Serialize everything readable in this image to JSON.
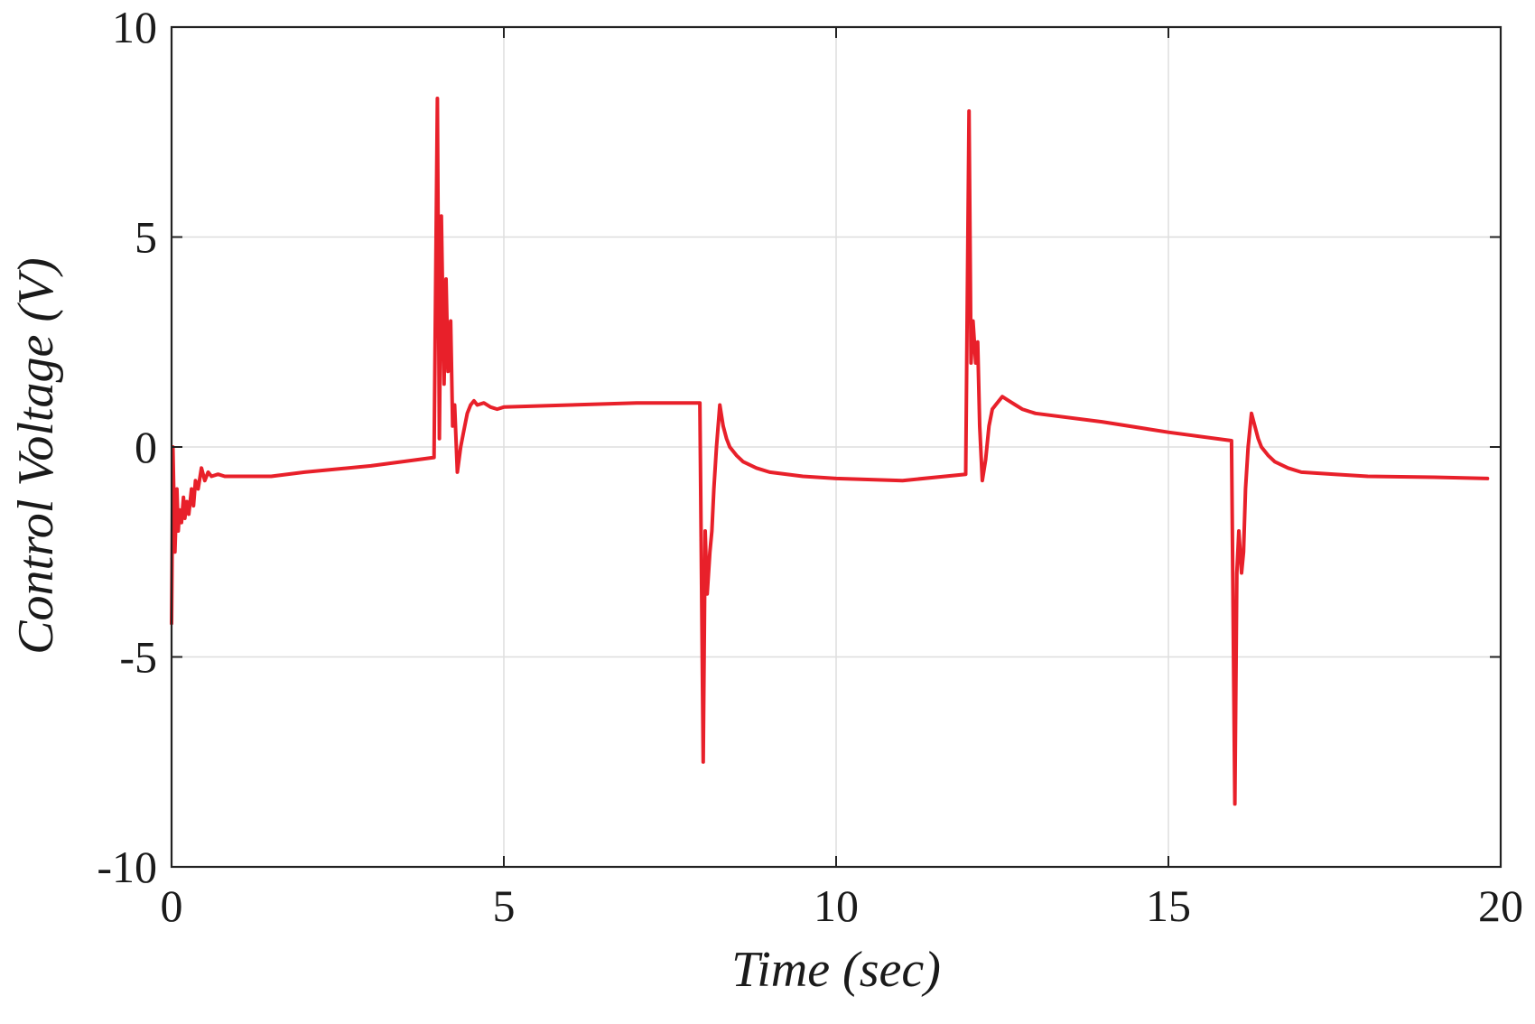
{
  "chart_data": {
    "type": "line",
    "title": "",
    "xlabel": "Time (sec)",
    "ylabel": "Control Voltage (V)",
    "xlim": [
      0,
      20
    ],
    "ylim": [
      -10,
      10
    ],
    "x_ticks": [
      0,
      5,
      10,
      15,
      20
    ],
    "x_tick_labels": [
      "0",
      "5",
      "10",
      "15",
      "20"
    ],
    "y_ticks": [
      -10,
      -5,
      0,
      5,
      10
    ],
    "y_tick_labels": [
      "-10",
      "-5",
      "0",
      "5",
      "10"
    ],
    "grid": true,
    "legend": "none",
    "colors": {
      "series": "#e8202a",
      "frame": "#222222",
      "grid": "#dedede"
    },
    "series": [
      {
        "color": "#e8202a",
        "x": [
          0.0,
          0.02,
          0.05,
          0.08,
          0.1,
          0.12,
          0.15,
          0.18,
          0.2,
          0.23,
          0.26,
          0.3,
          0.33,
          0.36,
          0.4,
          0.45,
          0.5,
          0.55,
          0.6,
          0.7,
          0.8,
          1.0,
          1.5,
          2.0,
          3.0,
          3.95,
          4.0,
          4.03,
          4.06,
          4.1,
          4.13,
          4.16,
          4.2,
          4.23,
          4.26,
          4.3,
          4.35,
          4.4,
          4.45,
          4.5,
          4.55,
          4.6,
          4.7,
          4.8,
          4.9,
          5.0,
          6.0,
          7.0,
          7.95,
          8.0,
          8.03,
          8.06,
          8.1,
          8.13,
          8.16,
          8.2,
          8.25,
          8.3,
          8.35,
          8.4,
          8.5,
          8.6,
          8.8,
          9.0,
          9.5,
          10.0,
          11.0,
          11.95,
          12.0,
          12.03,
          12.06,
          12.1,
          12.13,
          12.16,
          12.2,
          12.25,
          12.3,
          12.35,
          12.4,
          12.5,
          12.6,
          12.7,
          12.8,
          12.9,
          13.0,
          14.0,
          15.0,
          15.95,
          16.0,
          16.03,
          16.06,
          16.1,
          16.13,
          16.16,
          16.2,
          16.25,
          16.3,
          16.35,
          16.4,
          16.5,
          16.6,
          16.8,
          17.0,
          17.5,
          18.0,
          19.0,
          19.8
        ],
        "y": [
          -4.2,
          0.0,
          -2.5,
          -1.0,
          -2.0,
          -1.5,
          -1.8,
          -1.2,
          -1.7,
          -1.3,
          -1.6,
          -1.0,
          -1.4,
          -0.8,
          -1.0,
          -0.5,
          -0.8,
          -0.6,
          -0.7,
          -0.65,
          -0.7,
          -0.7,
          -0.7,
          -0.6,
          -0.45,
          -0.25,
          8.3,
          0.2,
          5.5,
          1.5,
          4.0,
          1.8,
          3.0,
          0.5,
          1.0,
          -0.6,
          0.0,
          0.4,
          0.8,
          1.0,
          1.1,
          1.0,
          1.05,
          0.95,
          0.9,
          0.95,
          1.0,
          1.05,
          1.05,
          -7.5,
          -2.0,
          -3.5,
          -2.5,
          -2.0,
          -1.0,
          0.0,
          1.0,
          0.5,
          0.2,
          0.0,
          -0.2,
          -0.35,
          -0.5,
          -0.6,
          -0.7,
          -0.75,
          -0.8,
          -0.65,
          8.0,
          2.0,
          3.0,
          2.0,
          2.5,
          0.5,
          -0.8,
          -0.3,
          0.5,
          0.9,
          1.0,
          1.2,
          1.1,
          1.0,
          0.9,
          0.85,
          0.8,
          0.6,
          0.35,
          0.15,
          -8.5,
          -3.0,
          -2.0,
          -3.0,
          -2.5,
          -1.0,
          0.0,
          0.8,
          0.5,
          0.2,
          0.0,
          -0.2,
          -0.35,
          -0.5,
          -0.6,
          -0.65,
          -0.7,
          -0.72,
          -0.75
        ]
      }
    ]
  }
}
